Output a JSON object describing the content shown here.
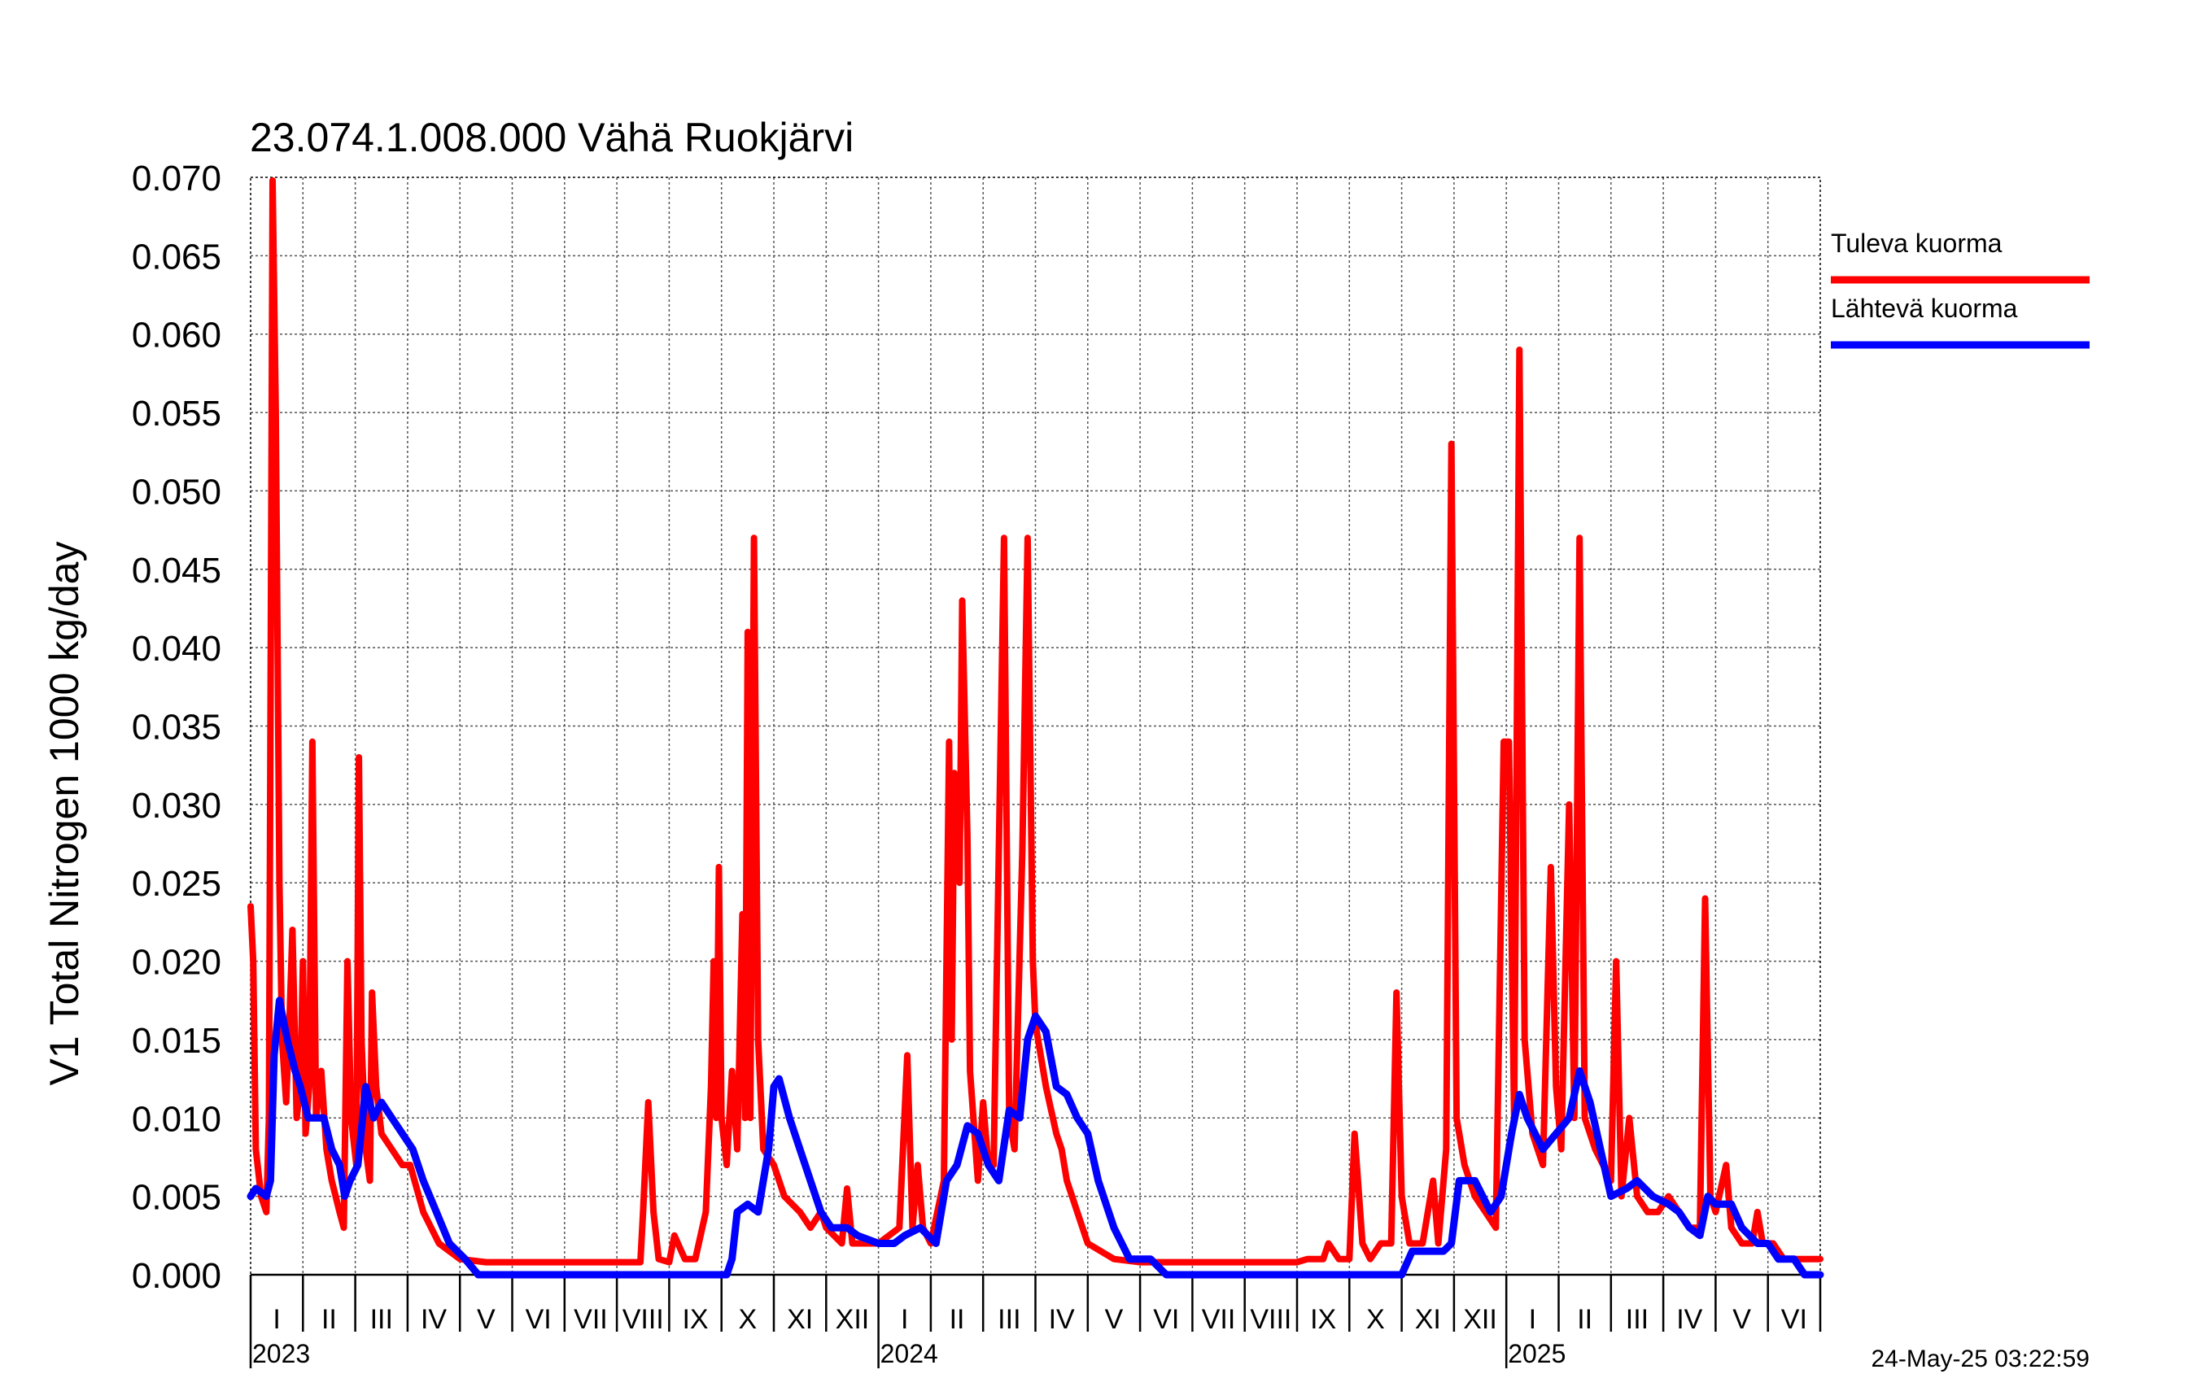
{
  "chart_data": {
    "type": "line",
    "title": "23.074.1.008.000 Vähä Ruokjärvi",
    "ylabel": "V1 Total Nitrogen 1000 kg/day",
    "xlabel": "",
    "ylim": [
      0.0,
      0.07
    ],
    "y_ticks": [
      "0.000",
      "0.005",
      "0.010",
      "0.015",
      "0.020",
      "0.025",
      "0.030",
      "0.035",
      "0.040",
      "0.045",
      "0.050",
      "0.055",
      "0.060",
      "0.065",
      "0.070"
    ],
    "x_range_months": [
      0,
      30
    ],
    "month_labels": [
      "I",
      "II",
      "III",
      "IV",
      "V",
      "VI",
      "VII",
      "VIII",
      "IX",
      "X",
      "XI",
      "XII",
      "I",
      "II",
      "III",
      "IV",
      "V",
      "VI",
      "VII",
      "VIII",
      "IX",
      "X",
      "XI",
      "XII",
      "I",
      "II",
      "III",
      "IV",
      "V",
      "VI"
    ],
    "year_labels": [
      {
        "label": "2023",
        "month_index": 0
      },
      {
        "label": "2024",
        "month_index": 12
      },
      {
        "label": "2025",
        "month_index": 24
      }
    ],
    "timestamp": "24-May-25 03:22:59",
    "grid": true,
    "legend_position": "right",
    "series": [
      {
        "name": "Tuleva kuorma",
        "color": "#ff0000",
        "points": [
          [
            0.0,
            0.0235
          ],
          [
            0.05,
            0.02
          ],
          [
            0.1,
            0.008
          ],
          [
            0.2,
            0.005
          ],
          [
            0.3,
            0.004
          ],
          [
            0.35,
            0.01
          ],
          [
            0.42,
            0.0698
          ],
          [
            0.48,
            0.055
          ],
          [
            0.55,
            0.025
          ],
          [
            0.6,
            0.015
          ],
          [
            0.68,
            0.011
          ],
          [
            0.74,
            0.016
          ],
          [
            0.8,
            0.022
          ],
          [
            0.88,
            0.01
          ],
          [
            0.95,
            0.012
          ],
          [
            1.0,
            0.02
          ],
          [
            1.05,
            0.009
          ],
          [
            1.12,
            0.012
          ],
          [
            1.18,
            0.034
          ],
          [
            1.25,
            0.01
          ],
          [
            1.35,
            0.013
          ],
          [
            1.45,
            0.008
          ],
          [
            1.55,
            0.006
          ],
          [
            1.7,
            0.004
          ],
          [
            1.78,
            0.003
          ],
          [
            1.85,
            0.02
          ],
          [
            1.92,
            0.01
          ],
          [
            2.02,
            0.007
          ],
          [
            2.07,
            0.033
          ],
          [
            2.12,
            0.015
          ],
          [
            2.2,
            0.008
          ],
          [
            2.28,
            0.006
          ],
          [
            2.32,
            0.018
          ],
          [
            2.4,
            0.012
          ],
          [
            2.5,
            0.009
          ],
          [
            2.7,
            0.008
          ],
          [
            2.9,
            0.007
          ],
          [
            3.05,
            0.007
          ],
          [
            3.3,
            0.004
          ],
          [
            3.6,
            0.002
          ],
          [
            4.0,
            0.001
          ],
          [
            4.5,
            0.0008
          ],
          [
            5.5,
            0.0008
          ],
          [
            6.5,
            0.0008
          ],
          [
            7.45,
            0.0008
          ],
          [
            7.5,
            0.004
          ],
          [
            7.6,
            0.011
          ],
          [
            7.7,
            0.004
          ],
          [
            7.8,
            0.001
          ],
          [
            8.0,
            0.0008
          ],
          [
            8.1,
            0.0025
          ],
          [
            8.3,
            0.001
          ],
          [
            8.5,
            0.001
          ],
          [
            8.7,
            0.004
          ],
          [
            8.8,
            0.012
          ],
          [
            8.85,
            0.02
          ],
          [
            8.9,
            0.01
          ],
          [
            8.95,
            0.026
          ],
          [
            9.0,
            0.01
          ],
          [
            9.1,
            0.007
          ],
          [
            9.2,
            0.013
          ],
          [
            9.3,
            0.008
          ],
          [
            9.4,
            0.023
          ],
          [
            9.45,
            0.01
          ],
          [
            9.5,
            0.041
          ],
          [
            9.55,
            0.01
          ],
          [
            9.62,
            0.047
          ],
          [
            9.7,
            0.015
          ],
          [
            9.8,
            0.008
          ],
          [
            10.0,
            0.007
          ],
          [
            10.2,
            0.005
          ],
          [
            10.5,
            0.004
          ],
          [
            10.7,
            0.003
          ],
          [
            10.9,
            0.004
          ],
          [
            11.0,
            0.003
          ],
          [
            11.3,
            0.002
          ],
          [
            11.4,
            0.0055
          ],
          [
            11.5,
            0.002
          ],
          [
            11.9,
            0.002
          ],
          [
            12.0,
            0.002
          ],
          [
            12.4,
            0.003
          ],
          [
            12.55,
            0.014
          ],
          [
            12.65,
            0.003
          ],
          [
            12.75,
            0.007
          ],
          [
            12.85,
            0.003
          ],
          [
            13.0,
            0.002
          ],
          [
            13.25,
            0.006
          ],
          [
            13.35,
            0.034
          ],
          [
            13.4,
            0.015
          ],
          [
            13.45,
            0.032
          ],
          [
            13.55,
            0.025
          ],
          [
            13.6,
            0.043
          ],
          [
            13.7,
            0.028
          ],
          [
            13.75,
            0.013
          ],
          [
            13.9,
            0.006
          ],
          [
            14.0,
            0.011
          ],
          [
            14.1,
            0.007
          ],
          [
            14.2,
            0.007
          ],
          [
            14.4,
            0.047
          ],
          [
            14.5,
            0.01
          ],
          [
            14.6,
            0.008
          ],
          [
            14.75,
            0.027
          ],
          [
            14.85,
            0.047
          ],
          [
            14.95,
            0.02
          ],
          [
            15.0,
            0.016
          ],
          [
            15.2,
            0.012
          ],
          [
            15.4,
            0.009
          ],
          [
            15.5,
            0.008
          ],
          [
            15.6,
            0.006
          ],
          [
            15.8,
            0.004
          ],
          [
            16.0,
            0.002
          ],
          [
            16.5,
            0.001
          ],
          [
            17.0,
            0.0008
          ],
          [
            18.0,
            0.0008
          ],
          [
            19.0,
            0.0008
          ],
          [
            20.0,
            0.0008
          ],
          [
            20.2,
            0.001
          ],
          [
            20.5,
            0.001
          ],
          [
            20.6,
            0.002
          ],
          [
            20.8,
            0.001
          ],
          [
            21.0,
            0.001
          ],
          [
            21.1,
            0.009
          ],
          [
            21.25,
            0.002
          ],
          [
            21.4,
            0.001
          ],
          [
            21.6,
            0.002
          ],
          [
            21.8,
            0.002
          ],
          [
            21.9,
            0.018
          ],
          [
            22.0,
            0.005
          ],
          [
            22.15,
            0.002
          ],
          [
            22.3,
            0.002
          ],
          [
            22.4,
            0.002
          ],
          [
            22.6,
            0.006
          ],
          [
            22.7,
            0.002
          ],
          [
            22.85,
            0.008
          ],
          [
            22.95,
            0.053
          ],
          [
            23.05,
            0.01
          ],
          [
            23.2,
            0.007
          ],
          [
            23.4,
            0.005
          ],
          [
            23.6,
            0.004
          ],
          [
            23.8,
            0.003
          ],
          [
            23.95,
            0.034
          ],
          [
            24.05,
            0.034
          ],
          [
            24.15,
            0.01
          ],
          [
            24.25,
            0.059
          ],
          [
            24.35,
            0.015
          ],
          [
            24.5,
            0.009
          ],
          [
            24.7,
            0.007
          ],
          [
            24.85,
            0.026
          ],
          [
            24.95,
            0.012
          ],
          [
            25.05,
            0.008
          ],
          [
            25.2,
            0.03
          ],
          [
            25.3,
            0.01
          ],
          [
            25.4,
            0.047
          ],
          [
            25.5,
            0.01
          ],
          [
            25.7,
            0.008
          ],
          [
            26.0,
            0.006
          ],
          [
            26.1,
            0.02
          ],
          [
            26.2,
            0.005
          ],
          [
            26.35,
            0.01
          ],
          [
            26.5,
            0.005
          ],
          [
            26.7,
            0.004
          ],
          [
            26.9,
            0.004
          ],
          [
            27.1,
            0.005
          ],
          [
            27.3,
            0.004
          ],
          [
            27.5,
            0.003
          ],
          [
            27.7,
            0.003
          ],
          [
            27.8,
            0.024
          ],
          [
            27.9,
            0.005
          ],
          [
            28.0,
            0.004
          ],
          [
            28.2,
            0.007
          ],
          [
            28.3,
            0.003
          ],
          [
            28.5,
            0.002
          ],
          [
            28.7,
            0.002
          ],
          [
            28.8,
            0.004
          ],
          [
            28.9,
            0.002
          ],
          [
            29.1,
            0.002
          ],
          [
            29.3,
            0.001
          ],
          [
            29.5,
            0.001
          ],
          [
            29.7,
            0.001
          ],
          [
            30.0,
            0.001
          ]
        ]
      },
      {
        "name": "Lähtevä kuorma",
        "color": "#0000ff",
        "points": [
          [
            0.0,
            0.005
          ],
          [
            0.1,
            0.0055
          ],
          [
            0.3,
            0.005
          ],
          [
            0.38,
            0.006
          ],
          [
            0.45,
            0.014
          ],
          [
            0.55,
            0.0175
          ],
          [
            0.7,
            0.015
          ],
          [
            0.85,
            0.013
          ],
          [
            0.95,
            0.012
          ],
          [
            1.1,
            0.01
          ],
          [
            1.3,
            0.01
          ],
          [
            1.4,
            0.01
          ],
          [
            1.55,
            0.008
          ],
          [
            1.7,
            0.007
          ],
          [
            1.8,
            0.005
          ],
          [
            1.9,
            0.006
          ],
          [
            2.05,
            0.007
          ],
          [
            2.2,
            0.012
          ],
          [
            2.35,
            0.01
          ],
          [
            2.5,
            0.011
          ],
          [
            2.7,
            0.01
          ],
          [
            2.9,
            0.009
          ],
          [
            3.1,
            0.008
          ],
          [
            3.3,
            0.006
          ],
          [
            3.55,
            0.004
          ],
          [
            3.8,
            0.002
          ],
          [
            4.1,
            0.001
          ],
          [
            4.35,
            0.0
          ],
          [
            5.5,
            0.0
          ],
          [
            7.0,
            0.0
          ],
          [
            8.0,
            0.0
          ],
          [
            9.1,
            0.0
          ],
          [
            9.2,
            0.001
          ],
          [
            9.3,
            0.004
          ],
          [
            9.5,
            0.0045
          ],
          [
            9.7,
            0.004
          ],
          [
            9.8,
            0.006
          ],
          [
            9.9,
            0.008
          ],
          [
            10.0,
            0.012
          ],
          [
            10.1,
            0.0125
          ],
          [
            10.3,
            0.01
          ],
          [
            10.5,
            0.008
          ],
          [
            10.7,
            0.006
          ],
          [
            10.9,
            0.004
          ],
          [
            11.1,
            0.003
          ],
          [
            11.4,
            0.003
          ],
          [
            11.6,
            0.0025
          ],
          [
            12.0,
            0.002
          ],
          [
            12.3,
            0.002
          ],
          [
            12.5,
            0.0025
          ],
          [
            12.8,
            0.003
          ],
          [
            13.1,
            0.002
          ],
          [
            13.3,
            0.006
          ],
          [
            13.5,
            0.007
          ],
          [
            13.7,
            0.0095
          ],
          [
            13.9,
            0.009
          ],
          [
            14.1,
            0.007
          ],
          [
            14.3,
            0.006
          ],
          [
            14.5,
            0.0105
          ],
          [
            14.7,
            0.01
          ],
          [
            14.85,
            0.015
          ],
          [
            15.0,
            0.0165
          ],
          [
            15.2,
            0.0155
          ],
          [
            15.4,
            0.012
          ],
          [
            15.6,
            0.0115
          ],
          [
            15.8,
            0.01
          ],
          [
            16.0,
            0.009
          ],
          [
            16.2,
            0.006
          ],
          [
            16.5,
            0.003
          ],
          [
            16.8,
            0.001
          ],
          [
            17.2,
            0.001
          ],
          [
            17.5,
            0.0
          ],
          [
            18.5,
            0.0
          ],
          [
            20.0,
            0.0
          ],
          [
            21.0,
            0.0
          ],
          [
            22.0,
            0.0
          ],
          [
            22.2,
            0.0015
          ],
          [
            22.5,
            0.0015
          ],
          [
            22.8,
            0.0015
          ],
          [
            22.95,
            0.002
          ],
          [
            23.1,
            0.006
          ],
          [
            23.4,
            0.006
          ],
          [
            23.7,
            0.004
          ],
          [
            23.9,
            0.005
          ],
          [
            24.1,
            0.009
          ],
          [
            24.25,
            0.0115
          ],
          [
            24.4,
            0.01
          ],
          [
            24.7,
            0.008
          ],
          [
            24.95,
            0.009
          ],
          [
            25.2,
            0.01
          ],
          [
            25.4,
            0.013
          ],
          [
            25.6,
            0.011
          ],
          [
            25.8,
            0.008
          ],
          [
            26.0,
            0.005
          ],
          [
            26.3,
            0.0055
          ],
          [
            26.5,
            0.006
          ],
          [
            26.8,
            0.005
          ],
          [
            27.1,
            0.0045
          ],
          [
            27.3,
            0.004
          ],
          [
            27.5,
            0.003
          ],
          [
            27.7,
            0.0025
          ],
          [
            27.85,
            0.005
          ],
          [
            28.0,
            0.0045
          ],
          [
            28.3,
            0.0045
          ],
          [
            28.5,
            0.003
          ],
          [
            28.8,
            0.002
          ],
          [
            29.0,
            0.002
          ],
          [
            29.2,
            0.001
          ],
          [
            29.5,
            0.001
          ],
          [
            29.7,
            0.0
          ],
          [
            30.0,
            0.0
          ]
        ]
      }
    ]
  }
}
